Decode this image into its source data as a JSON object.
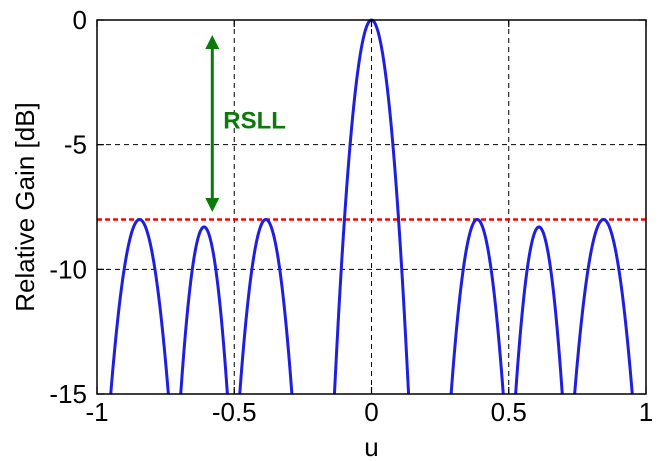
{
  "chart_data": {
    "type": "line",
    "xlabel": "u",
    "ylabel": "Relative Gain [dB]",
    "xlim": [
      -1,
      1
    ],
    "ylim": [
      -15,
      0
    ],
    "x_ticks": [
      -1,
      -0.5,
      0,
      0.5,
      1
    ],
    "x_tick_labels": [
      "-1",
      "-0.5",
      "0",
      "0.5",
      "1"
    ],
    "y_ticks": [
      0,
      -5,
      -10,
      -15
    ],
    "y_tick_labels": [
      "0",
      "-5",
      "-10",
      "-15"
    ],
    "grid": true,
    "series": [
      {
        "color": "#1f1fe0",
        "lobes": [
          {
            "peak_u": -0.84,
            "peak_db": -8.0,
            "zeros": [
              -0.95,
              -0.74
            ]
          },
          {
            "peak_u": -0.61,
            "peak_db": -8.3,
            "zeros": [
              -0.695,
              -0.525
            ]
          },
          {
            "peak_u": -0.39,
            "peak_db": -8.0,
            "zeros": [
              -0.48,
              -0.29
            ]
          },
          {
            "peak_u": 0.0,
            "peak_db": 0.0,
            "zeros": [
              -0.135,
              0.135
            ]
          },
          {
            "peak_u": 0.39,
            "peak_db": -8.0,
            "zeros": [
              0.29,
              0.48
            ]
          },
          {
            "peak_u": 0.61,
            "peak_db": -8.3,
            "zeros": [
              0.525,
              0.695
            ]
          },
          {
            "peak_u": 0.84,
            "peak_db": -8.0,
            "zeros": [
              0.74,
              0.95
            ]
          }
        ]
      }
    ],
    "reference_line": {
      "y": -8.0,
      "color": "#ff0000",
      "style": "dashed"
    },
    "annotation": {
      "text": "RSLL",
      "color": "#0a7a0a",
      "arrow_u": -0.58,
      "arrow_from_db": -0.6,
      "arrow_to_db": -7.7,
      "text_u": -0.54,
      "text_db": -4.0
    }
  }
}
